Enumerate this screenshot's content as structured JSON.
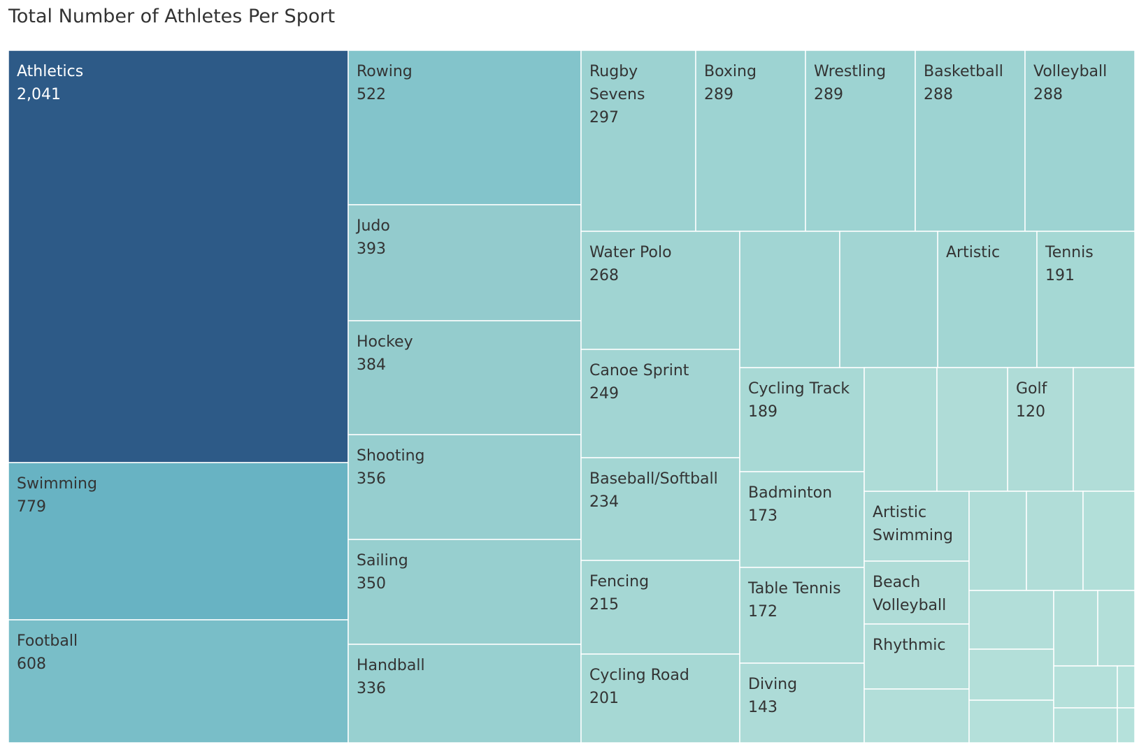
{
  "chart_data": {
    "type": "treemap",
    "title": "Total Number of Athletes Per Sport",
    "color_scale": {
      "low": "#b4e2d8",
      "high": "#2e5a87"
    },
    "labeled": [
      {
        "name": "Athletics",
        "value": 2041,
        "value_label": "2,041",
        "color": "#2d5a87",
        "dark": true
      },
      {
        "name": "Swimming",
        "value": 779,
        "value_label": "779",
        "color": "#68b3c3",
        "dark": false
      },
      {
        "name": "Football",
        "value": 608,
        "value_label": "608",
        "color": "#79bec8",
        "dark": false
      },
      {
        "name": "Rowing",
        "value": 522,
        "value_label": "522",
        "color": "#83c4cb",
        "dark": false
      },
      {
        "name": "Judo",
        "value": 393,
        "value_label": "393",
        "color": "#93cbcd",
        "dark": false
      },
      {
        "name": "Hockey",
        "value": 384,
        "value_label": "384",
        "color": "#94cccd",
        "dark": false
      },
      {
        "name": "Shooting",
        "value": 356,
        "value_label": "356",
        "color": "#96cecf",
        "dark": false
      },
      {
        "name": "Sailing",
        "value": 350,
        "value_label": "350",
        "color": "#97cfcf",
        "dark": false
      },
      {
        "name": "Handball",
        "value": 336,
        "value_label": "336",
        "color": "#98d0d0",
        "dark": false
      },
      {
        "name": "Rugby Sevens",
        "value": 297,
        "value_label": "297",
        "color": "#9cd2d1",
        "dark": false
      },
      {
        "name": "Boxing",
        "value": 289,
        "value_label": "289",
        "color": "#9dd3d2",
        "dark": false
      },
      {
        "name": "Wrestling",
        "value": 289,
        "value_label": "289",
        "color": "#9dd3d2",
        "dark": false
      },
      {
        "name": "Basketball",
        "value": 288,
        "value_label": "288",
        "color": "#9dd3d2",
        "dark": false
      },
      {
        "name": "Volleyball",
        "value": 288,
        "value_label": "288",
        "color": "#9dd3d2",
        "dark": false
      },
      {
        "name": "Water Polo",
        "value": 268,
        "value_label": "268",
        "color": "#a0d4d2",
        "dark": false
      },
      {
        "name": "Artistic",
        "value": null,
        "value_label": "",
        "color": "#a2d6d3",
        "dark": false
      },
      {
        "name": "Tennis",
        "value": 191,
        "value_label": "191",
        "color": "#a5d8d4",
        "dark": false
      },
      {
        "name": "Canoe Sprint",
        "value": 249,
        "value_label": "249",
        "color": "#a2d5d3",
        "dark": false
      },
      {
        "name": "Baseball/Softball",
        "value": 234,
        "value_label": "234",
        "color": "#a3d6d3",
        "dark": false
      },
      {
        "name": "Fencing",
        "value": 215,
        "value_label": "215",
        "color": "#a5d7d4",
        "dark": false
      },
      {
        "name": "Cycling Road",
        "value": 201,
        "value_label": "201",
        "color": "#a6d8d4",
        "dark": false
      },
      {
        "name": "Cycling Track",
        "value": 189,
        "value_label": "189",
        "color": "#a8d9d5",
        "dark": false
      },
      {
        "name": "Badminton",
        "value": 173,
        "value_label": "173",
        "color": "#aadad6",
        "dark": false
      },
      {
        "name": "Table Tennis",
        "value": 172,
        "value_label": "172",
        "color": "#aadad6",
        "dark": false
      },
      {
        "name": "Diving",
        "value": 143,
        "value_label": "143",
        "color": "#addbd7",
        "dark": false
      },
      {
        "name": "Golf",
        "value": 120,
        "value_label": "120",
        "color": "#afdcd7",
        "dark": false
      },
      {
        "name": "Artistic Swimming",
        "value": null,
        "value_label": "",
        "color": "#addbd7",
        "dark": false
      },
      {
        "name": "Beach Volleyball",
        "value": null,
        "value_label": "",
        "color": "#afdcd7",
        "dark": false
      },
      {
        "name": "Rhythmic",
        "value": null,
        "value_label": "",
        "color": "#b0ddd8",
        "dark": false
      }
    ],
    "unlabeled_colors": [
      "#a1d5d3",
      "#a2d5d3",
      "#aedcd7",
      "#afdcd7",
      "#b1ddd8",
      "#b0ddd8",
      "#b1ddd8",
      "#b2dfd9",
      "#b2ded9",
      "#b2ded9",
      "#b3dfd9",
      "#b3dfd9",
      "#b3dfd9",
      "#b4e0da",
      "#b4e0da",
      "#b5e1db",
      "#b4e0da",
      "#b5e1db",
      "#b5e1db"
    ]
  }
}
